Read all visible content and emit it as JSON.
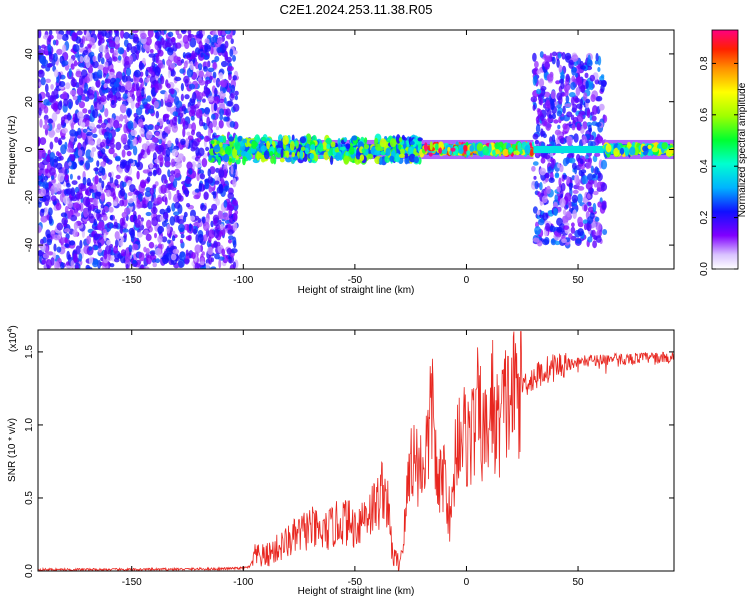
{
  "title": "C2E1.2024.253.11.38.R05",
  "chart_data": [
    {
      "type": "heatmap",
      "xlabel": "Height of straight line (km)",
      "ylabel": "Frequency (Hz)",
      "xlim": [
        -192,
        93
      ],
      "ylim": [
        -50,
        50
      ],
      "xticks": [
        -150,
        -100,
        -50,
        0,
        50
      ],
      "yticks": [
        -40,
        -20,
        0,
        20,
        40
      ],
      "colorbar": {
        "label": "Normalized spectral amplitude",
        "range": [
          0,
          0.93
        ],
        "ticks": [
          0.0,
          0.2,
          0.4,
          0.6,
          0.8
        ]
      },
      "regions": [
        {
          "x": [
            -192,
            -103
          ],
          "freq_extent": [
            -50,
            50
          ],
          "level": 0.18,
          "texture": "broadband noise"
        },
        {
          "x": [
            -115,
            -20
          ],
          "freq_extent": [
            -6,
            6
          ],
          "level": 0.5,
          "texture": "noisy band near 0 Hz"
        },
        {
          "x": [
            -20,
            30
          ],
          "freq_extent": [
            -2,
            2
          ],
          "level": 0.75,
          "texture": "narrow band at 0 Hz"
        },
        {
          "x": [
            30,
            62
          ],
          "freq_extent": [
            -40,
            40
          ],
          "level": 0.2,
          "texture": "noise columns with band at 0 Hz"
        },
        {
          "x": [
            62,
            93
          ],
          "freq_extent": [
            -2,
            2
          ],
          "level": 0.55,
          "texture": "narrow band at 0 Hz"
        }
      ]
    },
    {
      "type": "line",
      "xlabel": "Height of straight line (km)",
      "ylabel": "SNR (10 * v/v)",
      "y_multiplier": "(x10",
      "y_multiplier_exp": "4",
      "y_multiplier_close": ")",
      "xlim": [
        -192,
        93
      ],
      "ylim": [
        0,
        1.65
      ],
      "xticks": [
        -150,
        -100,
        -50,
        0,
        50
      ],
      "yticks": [
        "0.0",
        "0.5",
        "1.0",
        "1.5"
      ],
      "color": "#e8261f",
      "series": [
        {
          "x": [
            -192,
            -150,
            -110,
            -100,
            -97,
            -95,
            -90,
            -85,
            -80,
            -75,
            -70,
            -65,
            -60,
            -55,
            -50,
            -45,
            -40,
            -37,
            -35,
            -33,
            -30,
            -28,
            -25,
            -20,
            -17,
            -15,
            -13,
            -10,
            -7,
            -5,
            -3,
            0,
            3,
            5,
            8,
            10,
            12,
            13,
            15,
            18,
            20,
            25,
            30,
            35,
            40,
            50,
            60,
            70,
            80,
            93
          ],
          "y": [
            0.01,
            0.01,
            0.015,
            0.02,
            0.03,
            0.1,
            0.1,
            0.15,
            0.2,
            0.25,
            0.3,
            0.25,
            0.3,
            0.35,
            0.3,
            0.4,
            0.45,
            0.6,
            0.4,
            0.1,
            0.05,
            0.25,
            0.8,
            0.7,
            0.9,
            1.2,
            0.5,
            0.7,
            0.3,
            0.8,
            1.0,
            0.9,
            0.95,
            1.1,
            0.9,
            1.0,
            1.2,
            0.95,
            1.05,
            1.15,
            1.2,
            1.28,
            1.32,
            1.37,
            1.4,
            1.43,
            1.45,
            1.45,
            1.46,
            1.46
          ]
        }
      ]
    }
  ]
}
